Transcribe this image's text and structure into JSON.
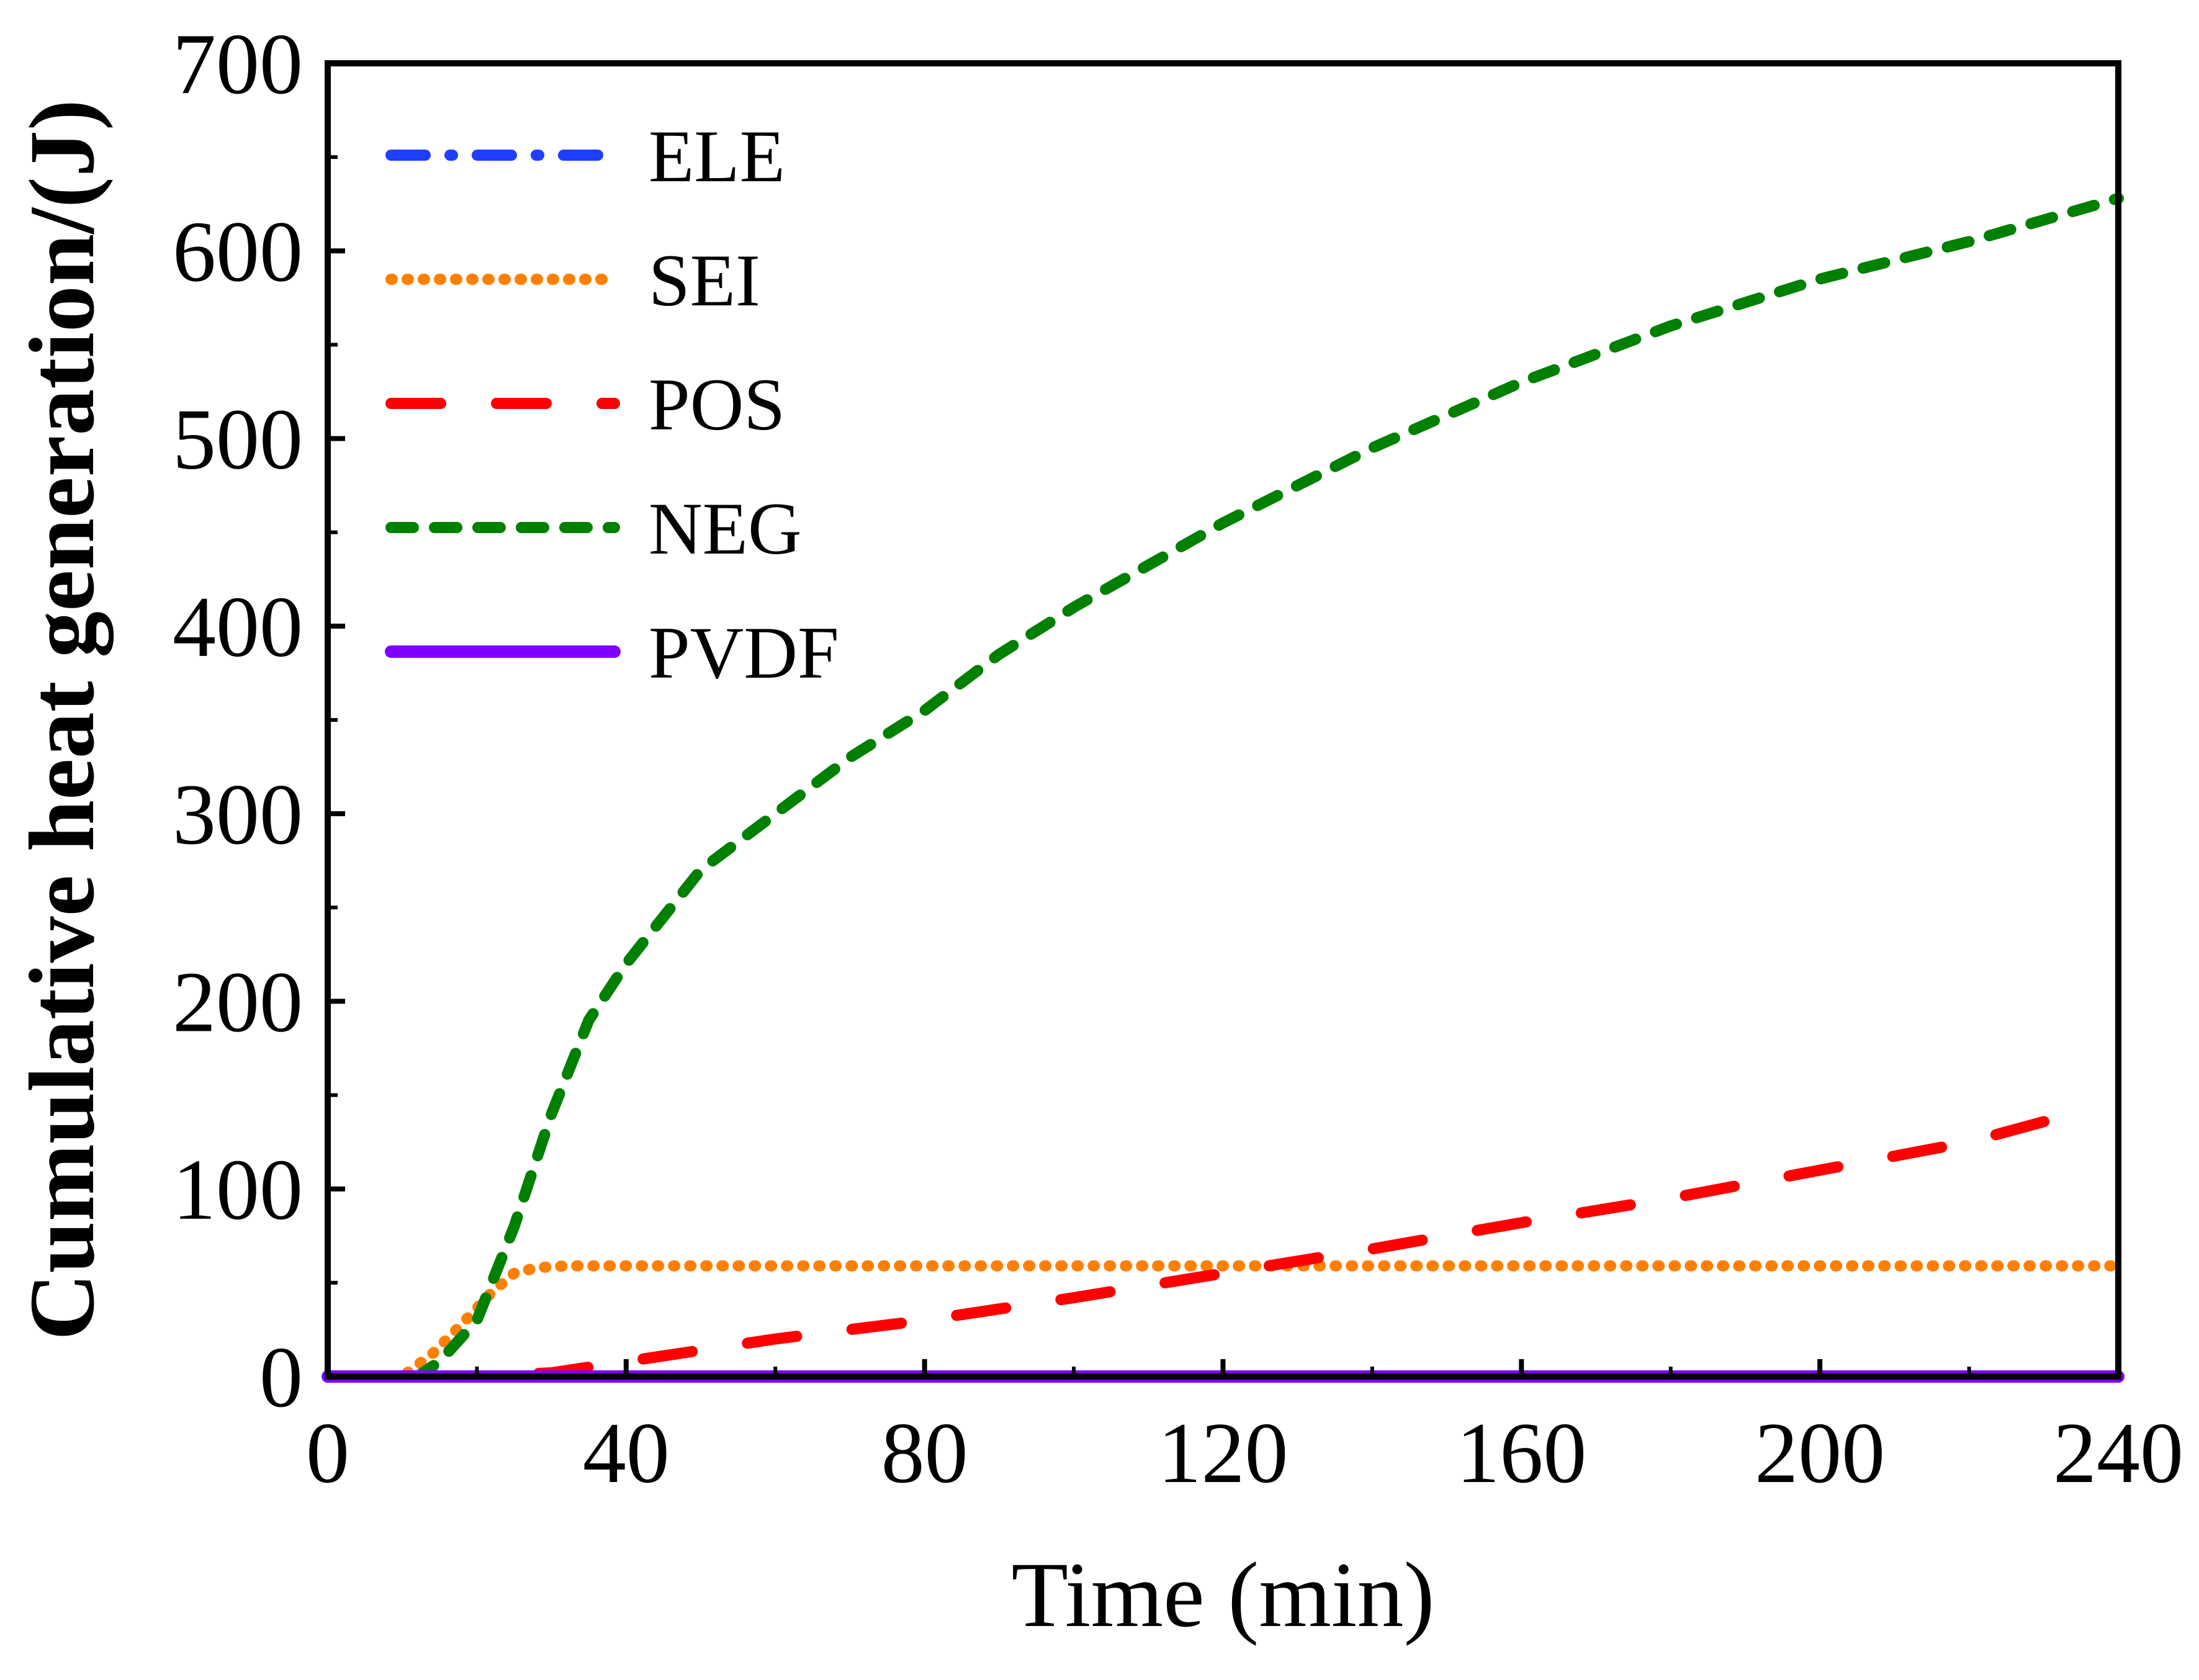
{
  "chart_data": {
    "type": "line",
    "title": "",
    "xlabel": "Time (min)",
    "ylabel": "Cumulative heat generation/(J)",
    "xlim": [
      0,
      240
    ],
    "ylim": [
      0,
      700
    ],
    "xticks": [
      0,
      40,
      80,
      120,
      160,
      200,
      240
    ],
    "yticks": [
      0,
      100,
      200,
      300,
      400,
      500,
      600,
      700
    ],
    "xtick_labels": [
      "0",
      "40",
      "80",
      "120",
      "160",
      "200",
      "240"
    ],
    "ytick_labels": [
      "0",
      "100",
      "200",
      "300",
      "400",
      "500",
      "600",
      "700"
    ],
    "grid": false,
    "legend_position": "top-left",
    "series": [
      {
        "name": "ELE",
        "color": "#1f3fff",
        "style": "dash-dot",
        "x": [
          0,
          40,
          80,
          120,
          160,
          200,
          240
        ],
        "y": [
          0,
          0,
          0,
          0,
          0,
          0,
          0
        ]
      },
      {
        "name": "SEI",
        "color": "#ff8000",
        "style": "dotted",
        "x": [
          0,
          10,
          14,
          18,
          22,
          25,
          28,
          32,
          40,
          80,
          120,
          160,
          200,
          240
        ],
        "y": [
          0,
          0,
          12,
          28,
          45,
          55,
          58,
          59,
          59,
          59,
          59,
          59,
          59,
          59
        ]
      },
      {
        "name": "POS",
        "color": "#ff0000",
        "style": "long-dash",
        "x": [
          0,
          20,
          30,
          40,
          60,
          80,
          100,
          120,
          140,
          160,
          180,
          200,
          220,
          232
        ],
        "y": [
          0,
          0,
          2,
          8,
          20,
          30,
          42,
          55,
          68,
          82,
          95,
          110,
          125,
          138
        ]
      },
      {
        "name": "NEG",
        "color": "#008000",
        "style": "short-dash",
        "x": [
          0,
          12,
          15,
          20,
          25,
          30,
          35,
          40,
          50,
          60,
          70,
          80,
          90,
          100,
          120,
          140,
          160,
          180,
          200,
          220,
          240
        ],
        "y": [
          0,
          0,
          8,
          30,
          80,
          140,
          190,
          220,
          270,
          300,
          330,
          355,
          385,
          410,
          455,
          495,
          530,
          560,
          585,
          605,
          628
        ]
      },
      {
        "name": "PVDF",
        "color": "#8000ff",
        "style": "solid",
        "x": [
          0,
          240
        ],
        "y": [
          0,
          0
        ]
      }
    ]
  }
}
